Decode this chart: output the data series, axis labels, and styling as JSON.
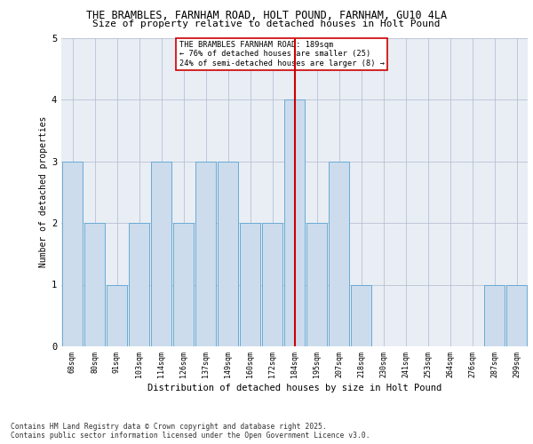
{
  "title_line1": "THE BRAMBLES, FARNHAM ROAD, HOLT POUND, FARNHAM, GU10 4LA",
  "title_line2": "Size of property relative to detached houses in Holt Pound",
  "xlabel": "Distribution of detached houses by size in Holt Pound",
  "ylabel": "Number of detached properties",
  "categories": [
    "68sqm",
    "80sqm",
    "91sqm",
    "103sqm",
    "114sqm",
    "126sqm",
    "137sqm",
    "149sqm",
    "160sqm",
    "172sqm",
    "184sqm",
    "195sqm",
    "207sqm",
    "218sqm",
    "230sqm",
    "241sqm",
    "253sqm",
    "264sqm",
    "276sqm",
    "287sqm",
    "299sqm"
  ],
  "values": [
    3,
    2,
    1,
    2,
    3,
    2,
    3,
    3,
    2,
    2,
    4,
    2,
    3,
    1,
    0,
    0,
    0,
    0,
    0,
    1,
    1
  ],
  "bar_color": "#ccdcec",
  "bar_edge_color": "#6aaad4",
  "red_line_index": 10,
  "annotation_text": "THE BRAMBLES FARNHAM ROAD: 189sqm\n← 76% of detached houses are smaller (25)\n24% of semi-detached houses are larger (8) →",
  "annotation_box_color": "#ffffff",
  "annotation_box_edge": "#cc0000",
  "red_line_color": "#cc0000",
  "footnote": "Contains HM Land Registry data © Crown copyright and database right 2025.\nContains public sector information licensed under the Open Government Licence v3.0.",
  "ylim": [
    0,
    5
  ],
  "yticks": [
    0,
    1,
    2,
    3,
    4,
    5
  ],
  "plot_bg_color": "#e8eef4",
  "fig_bg_color": "#ffffff"
}
